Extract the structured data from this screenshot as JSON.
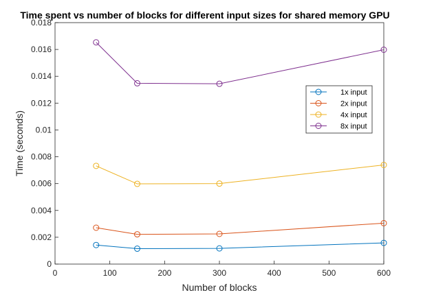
{
  "chart_data": {
    "type": "line",
    "title": "Time spent vs number of blocks for different input sizes for shared memory GPU",
    "xlabel": "Number of blocks",
    "ylabel": "Time (seconds)",
    "xlim": [
      0,
      600
    ],
    "ylim": [
      0,
      0.018
    ],
    "xticks": [
      0,
      100,
      200,
      300,
      400,
      500,
      600
    ],
    "xtick_labels": [
      "0",
      "100",
      "200",
      "300",
      "400",
      "500",
      "600"
    ],
    "yticks": [
      0,
      0.002,
      0.004,
      0.006,
      0.008,
      0.01,
      0.012,
      0.014,
      0.016,
      0.018
    ],
    "ytick_labels": [
      "0",
      "0.002",
      "0.004",
      "0.006",
      "0.008",
      "0.01",
      "0.012",
      "0.014",
      "0.016",
      "0.018"
    ],
    "grid": false,
    "legend_position": "right",
    "x": [
      75,
      150,
      300,
      600
    ],
    "series": [
      {
        "name": "1x input",
        "color": "#0072BD",
        "values": [
          0.00142,
          0.00115,
          0.00117,
          0.00158
        ]
      },
      {
        "name": "2x input",
        "color": "#D95319",
        "values": [
          0.00271,
          0.00222,
          0.00225,
          0.00305
        ]
      },
      {
        "name": "4x input",
        "color": "#EDB120",
        "values": [
          0.00732,
          0.00598,
          0.006,
          0.00739
        ]
      },
      {
        "name": "8x input",
        "color": "#7E2F8E",
        "values": [
          0.01653,
          0.01348,
          0.01344,
          0.01598
        ]
      }
    ]
  }
}
